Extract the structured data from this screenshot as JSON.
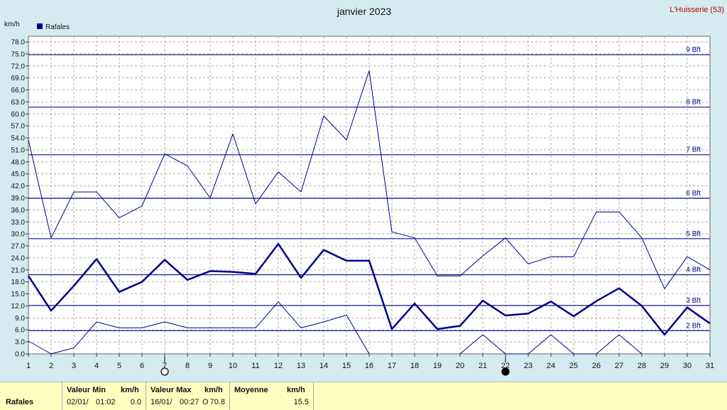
{
  "header": {
    "title": "janvier 2023",
    "station": "L'Huisserie (53)",
    "unit": "km/h",
    "legend": "Rafales"
  },
  "colors": {
    "series": "#00008b",
    "beaufort_line": "#1a2aa0",
    "grid": "#8c8c8c",
    "plot_bg": "#ffffff",
    "page_bg": "#d4ecf0",
    "stats_bg": "#ffffc0"
  },
  "chart_data": {
    "type": "line",
    "title": "janvier 2023",
    "ylabel": "km/h",
    "ylim": [
      0,
      78
    ],
    "yticks": [
      "0.0",
      "3.0",
      "6.0",
      "9.0",
      "12.0",
      "15.0",
      "18.0",
      "21.0",
      "24.0",
      "27.0",
      "30.0",
      "33.0",
      "36.0",
      "39.0",
      "42.0",
      "45.0",
      "48.0",
      "51.0",
      "54.0",
      "57.0",
      "60.0",
      "63.0",
      "66.0",
      "69.0",
      "72.0",
      "75.0",
      "78.0"
    ],
    "x": [
      1,
      2,
      3,
      4,
      5,
      6,
      7,
      8,
      9,
      10,
      11,
      12,
      13,
      14,
      15,
      16,
      17,
      18,
      19,
      20,
      21,
      22,
      23,
      24,
      25,
      26,
      27,
      28,
      29,
      30,
      31
    ],
    "grid": true,
    "legend_position": "top-left",
    "series": [
      {
        "name": "Rafales",
        "role": "moyenne",
        "values": [
          19.5,
          10.8,
          17.0,
          23.7,
          15.5,
          18.0,
          23.5,
          18.5,
          20.7,
          20.5,
          20.0,
          27.5,
          19.0,
          26.0,
          23.3,
          23.3,
          6.2,
          12.6,
          6.2,
          7.0,
          13.3,
          9.6,
          10.1,
          13.1,
          9.4,
          13.2,
          16.4,
          12.0,
          4.8,
          11.6,
          7.6
        ]
      },
      {
        "role": "max",
        "values": [
          53.5,
          29.0,
          40.5,
          40.5,
          34.0,
          37.0,
          50.0,
          47.0,
          39.0,
          55.0,
          37.5,
          45.5,
          40.5,
          59.5,
          53.5,
          70.8,
          30.5,
          29.0,
          19.5,
          19.5,
          24.5,
          29.0,
          22.5,
          24.3,
          24.3,
          35.5,
          35.5,
          29.0,
          16.3,
          24.3,
          21.0
        ]
      },
      {
        "role": "min",
        "values": [
          3.2,
          0.0,
          1.5,
          8.0,
          6.5,
          6.5,
          8.0,
          6.5,
          6.5,
          6.5,
          6.5,
          13.0,
          6.5,
          8.0,
          9.7,
          0.0,
          null,
          null,
          null,
          0.0,
          4.8,
          0.0,
          0.0,
          4.8,
          0.0,
          0.0,
          4.8,
          0.0,
          null,
          null,
          null
        ]
      }
    ],
    "reference_lines": [
      {
        "label": "2 Bft",
        "value": 5.8
      },
      {
        "label": "3 Bft",
        "value": 12.1
      },
      {
        "label": "4 Bft",
        "value": 19.8
      },
      {
        "label": "5 Bft",
        "value": 28.8
      },
      {
        "label": "6 Bft",
        "value": 38.9
      },
      {
        "label": "7 Bft",
        "value": 49.8
      },
      {
        "label": "8 Bft",
        "value": 61.7
      },
      {
        "label": "9 Bft",
        "value": 74.8
      }
    ],
    "markers": [
      {
        "day": 7,
        "symbol": "open-circle"
      },
      {
        "day": 22,
        "symbol": "filled-circle"
      }
    ]
  },
  "stats": {
    "row_label": "Rafales",
    "min": {
      "header": "Valeur Min",
      "unit": "km/h",
      "date": "02/01/",
      "time": "01:02",
      "value": "0.0"
    },
    "max": {
      "header": "Valeur Max",
      "unit": "km/h",
      "date": "16/01/",
      "time": "00:27",
      "dir": "O",
      "value": "70.8"
    },
    "avg": {
      "header": "Moyenne",
      "unit": "km/h",
      "value": "15.5"
    }
  }
}
